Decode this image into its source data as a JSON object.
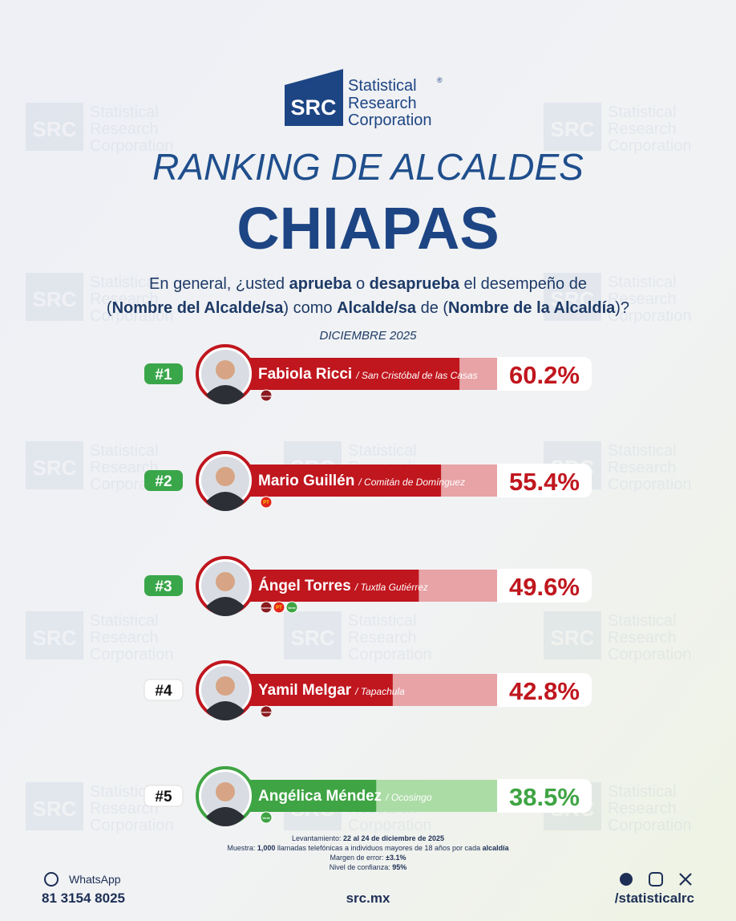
{
  "header": {
    "logo_mark": "SRC",
    "logo_lines": [
      "Statistical",
      "Research",
      "Corporation"
    ],
    "registered": "®"
  },
  "chart_data": {
    "type": "bar",
    "orientation": "horizontal",
    "title": "RANKING DE ALCALDES",
    "subtitle": "CHIAPAS",
    "question": [
      [
        {
          "text": "En general, ¿usted ",
          "bold": false
        },
        {
          "text": "aprueba",
          "bold": true
        },
        {
          "text": " o ",
          "bold": false
        },
        {
          "text": "desaprueba",
          "bold": true
        },
        {
          "text": " el desempeño de",
          "bold": false
        }
      ],
      [
        {
          "text": "(",
          "bold": false
        },
        {
          "text": "Nombre del Alcalde/sa",
          "bold": true
        },
        {
          "text": ") como ",
          "bold": false
        },
        {
          "text": "Alcalde/sa",
          "bold": true
        },
        {
          "text": " de (",
          "bold": false
        },
        {
          "text": "Nombre de la Alcaldía",
          "bold": true
        },
        {
          "text": ")?",
          "bold": false
        }
      ]
    ],
    "date": "DICIEMBRE 2025",
    "ranks": [
      "#1",
      "#2",
      "#3",
      "#4",
      "#5"
    ],
    "rank_colors": [
      "#3aa64a",
      "#3aa64a",
      "#3aa64a",
      "#ffffff",
      "#ffffff"
    ],
    "categories": [
      "Fabiola Ricci",
      "Mario Guillén",
      "Ángel Torres",
      "Yamil Melgar",
      "Angélica Méndez"
    ],
    "places": [
      "/ San Cristóbal de las Casas",
      "/ Comitán de Domínguez",
      "/ Tuxtla Gutiérrez",
      "/ Tapachula",
      "/ Ocosingo"
    ],
    "parties": [
      [
        "morena"
      ],
      [
        "PT"
      ],
      [
        "morena",
        "PT",
        "Verde"
      ],
      [
        "morena"
      ],
      [
        "Verde"
      ]
    ],
    "values": [
      60.2,
      55.4,
      49.6,
      42.8,
      38.5
    ],
    "value_labels": [
      "60.2%",
      "55.4%",
      "49.6%",
      "42.8%",
      "38.5%"
    ],
    "colors": [
      "#c0161e",
      "#c0161e",
      "#c0161e",
      "#c0161e",
      "#3fa444"
    ],
    "track_colors": [
      "#e7a3a6",
      "#e7a3a6",
      "#e7a3a6",
      "#e7a3a6",
      "#acdca6"
    ],
    "xlim": [
      0,
      70
    ]
  },
  "footer": {
    "methodology": [
      [
        {
          "text": "Levantamiento: ",
          "bold": false
        },
        {
          "text": "22 al 24 de diciembre de 2025",
          "bold": true
        }
      ],
      [
        {
          "text": "Muestra: ",
          "bold": false
        },
        {
          "text": "1,000",
          "bold": true
        },
        {
          "text": " llamadas telefónicas a individuos mayores de 18 años por cada ",
          "bold": false
        },
        {
          "text": "alcaldía",
          "bold": true
        }
      ],
      [
        {
          "text": "Margen de error: ",
          "bold": false
        },
        {
          "text": "±3.1%",
          "bold": true
        }
      ],
      [
        {
          "text": "Nivel de confianza: ",
          "bold": false
        },
        {
          "text": "95%",
          "bold": true
        }
      ]
    ],
    "whatsapp_label": "WhatsApp",
    "phone": "81 3154 8025",
    "website": "src.mx",
    "social_handle": "/statisticalrc"
  }
}
